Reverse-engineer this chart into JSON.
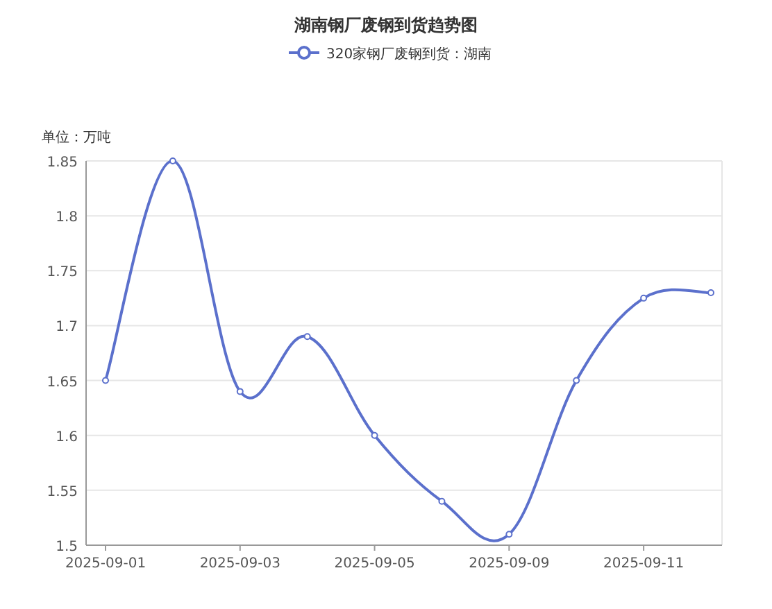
{
  "chart_data": {
    "type": "line",
    "title": "湖南钢厂废钢到货趋势图",
    "ylabel": "单位：万吨",
    "categories": [
      "2025-09-01",
      null,
      "2025-09-03",
      null,
      "2025-09-05",
      null,
      "2025-09-09",
      null,
      "2025-09-11",
      null
    ],
    "series": [
      {
        "name": "320家钢厂废钢到货：湖南",
        "color": "#5b70cc",
        "values": [
          1.65,
          1.85,
          1.64,
          1.69,
          1.6,
          1.54,
          1.51,
          1.65,
          1.725,
          1.73
        ]
      }
    ],
    "ylim": [
      1.5,
      1.85
    ],
    "yticks": [
      1.5,
      1.55,
      1.6,
      1.65,
      1.7,
      1.75,
      1.8,
      1.85
    ],
    "grid": "y",
    "legend": "top",
    "marker": "circle",
    "line_style": "solid"
  }
}
